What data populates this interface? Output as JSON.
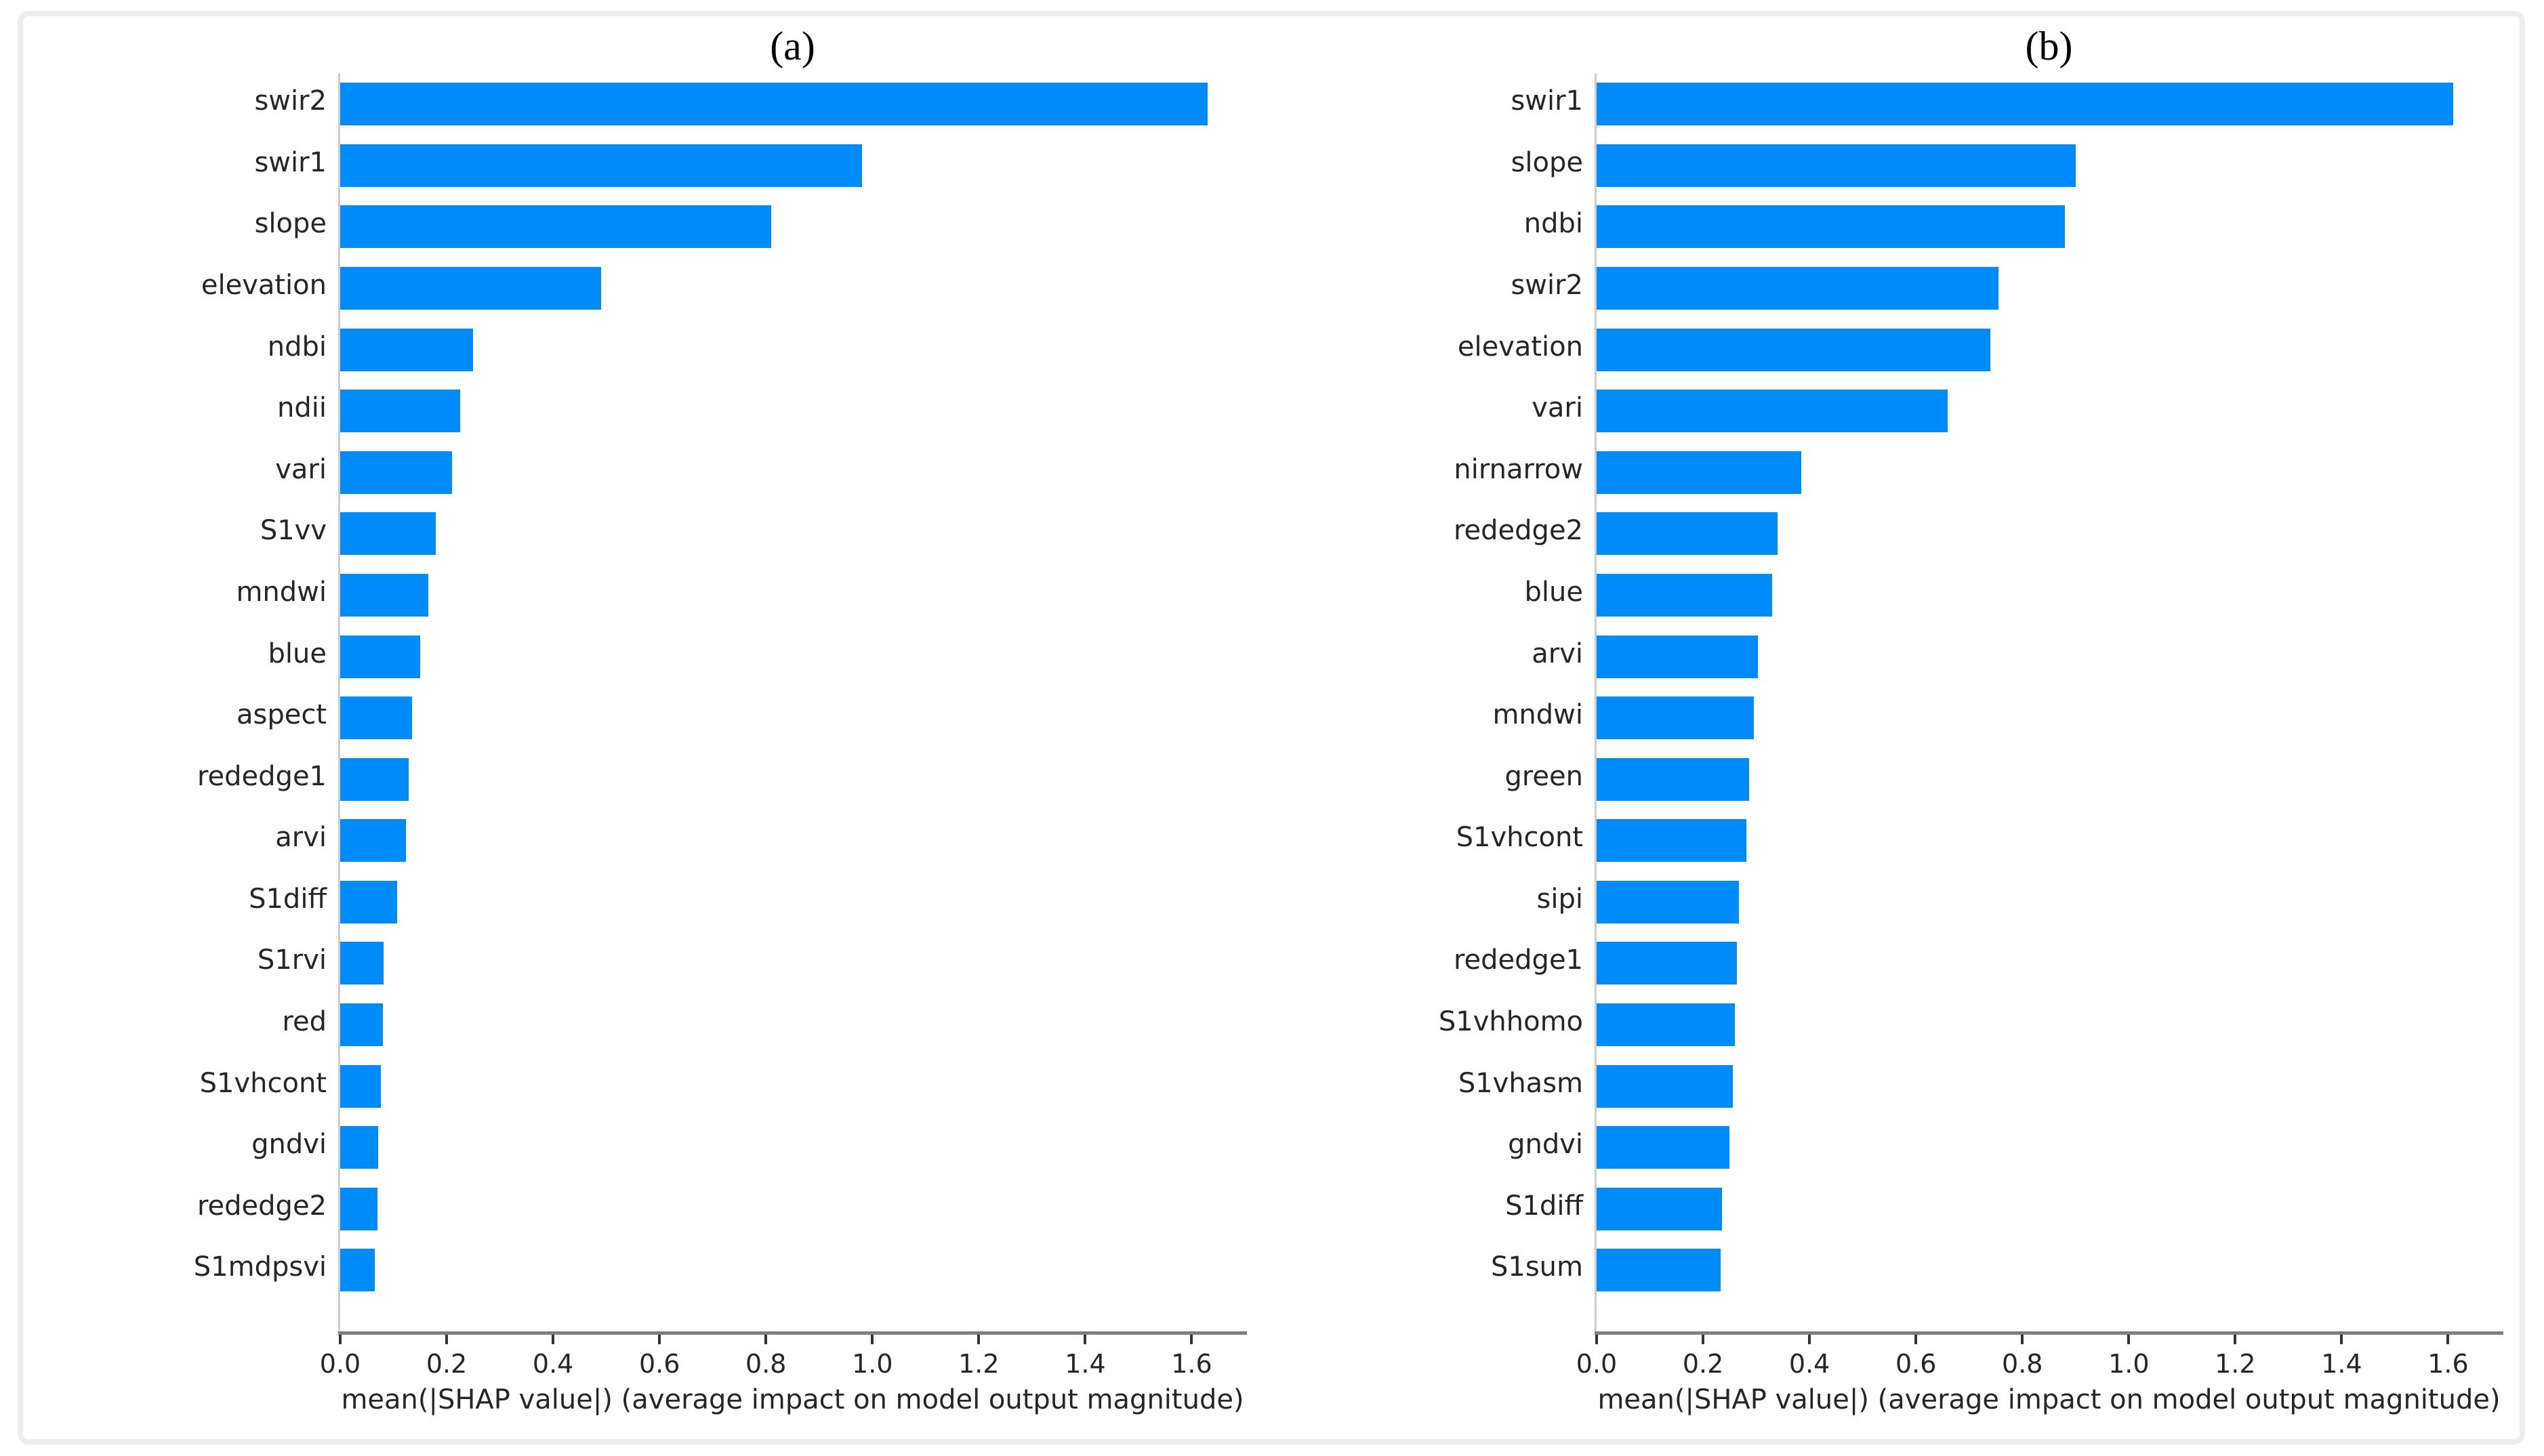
{
  "figure": {
    "background": "#ffffff",
    "border_color": "#ededed",
    "bar_color": "#008bfb",
    "axis_color": "#7f7f7f",
    "text_color": "#262626"
  },
  "chart_data": [
    {
      "type": "bar",
      "orientation": "horizontal",
      "title": "(a)",
      "xlabel": "mean(|SHAP value|) (average impact on model output magnitude)",
      "xlim": [
        0,
        1.7
      ],
      "x_ticks": [
        0.0,
        0.2,
        0.4,
        0.6,
        0.8,
        1.0,
        1.2,
        1.4,
        1.6
      ],
      "x_tick_labels": [
        "0.0",
        "0.2",
        "0.4",
        "0.6",
        "0.8",
        "1.0",
        "1.2",
        "1.4",
        "1.6"
      ],
      "grid": false,
      "legend": null,
      "bar_color": "#008bfb",
      "categories": [
        "swir2",
        "swir1",
        "slope",
        "elevation",
        "ndbi",
        "ndii",
        "vari",
        "S1vv",
        "mndwi",
        "blue",
        "aspect",
        "rededge1",
        "arvi",
        "S1diff",
        "S1rvi",
        "red",
        "S1vhcont",
        "gndvi",
        "rededge2",
        "S1mdpsvi"
      ],
      "values": [
        1.63,
        0.98,
        0.81,
        0.49,
        0.25,
        0.225,
        0.21,
        0.18,
        0.165,
        0.15,
        0.135,
        0.128,
        0.124,
        0.107,
        0.081,
        0.08,
        0.077,
        0.071,
        0.07,
        0.065
      ]
    },
    {
      "type": "bar",
      "orientation": "horizontal",
      "title": "(b)",
      "xlabel": "mean(|SHAP value|) (average impact on model output magnitude)",
      "xlim": [
        0,
        1.7
      ],
      "x_ticks": [
        0.0,
        0.2,
        0.4,
        0.6,
        0.8,
        1.0,
        1.2,
        1.4,
        1.6
      ],
      "x_tick_labels": [
        "0.0",
        "0.2",
        "0.4",
        "0.6",
        "0.8",
        "1.0",
        "1.2",
        "1.4",
        "1.6"
      ],
      "grid": false,
      "legend": null,
      "bar_color": "#008bfb",
      "categories": [
        "swir1",
        "slope",
        "ndbi",
        "swir2",
        "elevation",
        "vari",
        "nirnarrow",
        "rededge2",
        "blue",
        "arvi",
        "mndwi",
        "green",
        "S1vhcont",
        "sipi",
        "rededge1",
        "S1vhhomo",
        "S1vhasm",
        "gndvi",
        "S1diff",
        "S1sum"
      ],
      "values": [
        1.61,
        0.9,
        0.88,
        0.755,
        0.74,
        0.66,
        0.384,
        0.34,
        0.33,
        0.303,
        0.295,
        0.287,
        0.281,
        0.267,
        0.263,
        0.26,
        0.256,
        0.249,
        0.236,
        0.233
      ]
    }
  ]
}
